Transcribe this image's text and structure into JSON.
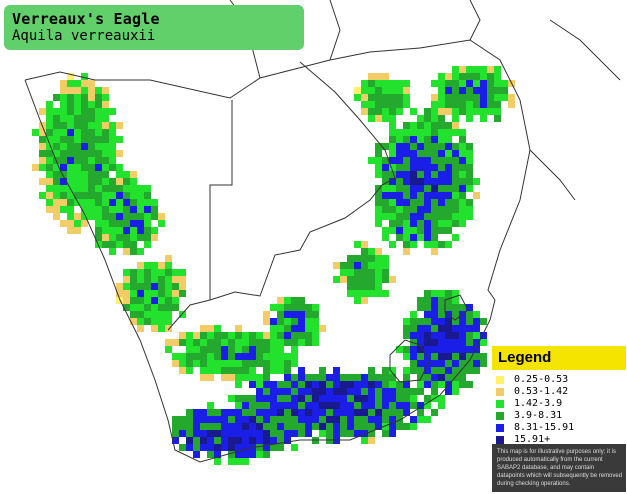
{
  "map": {
    "title": "Verreaux's Eagle",
    "subtitle": "Aquila verreauxii",
    "colors": {
      "background": "#ffffff",
      "border": "#333333",
      "title_box": "#62d06a"
    }
  },
  "legend": {
    "title": "Legend",
    "classes": [
      {
        "label": "0.25-0.53",
        "color": "#fff26b"
      },
      {
        "label": "0.53-1.42",
        "color": "#f2cc66"
      },
      {
        "label": "1.42-3.9",
        "color": "#22e22e"
      },
      {
        "label": "3.9-8.31",
        "color": "#25a82e"
      },
      {
        "label": "8.31-15.91",
        "color": "#1a1ee6"
      },
      {
        "label": "15.91+",
        "color": "#1a1a90"
      }
    ],
    "disclaimer": "This map is for illustrative purposes only; it is produced automatically from the current SABAP2 database, and may contain datapoints which will subsequently be removed during checking operations."
  }
}
